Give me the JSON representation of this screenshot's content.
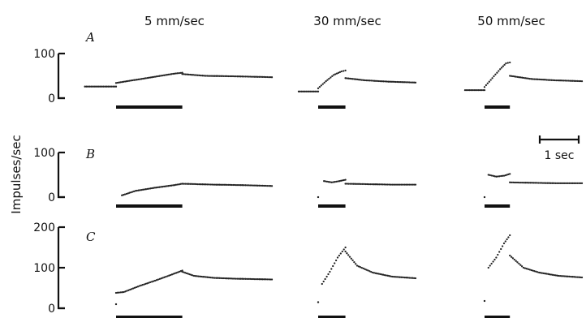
{
  "chart_data": {
    "type": "scatter",
    "ylabel": "Impulses/sec",
    "column_titles": [
      "5 mm/sec",
      "30 mm/sec",
      "50 mm/sec"
    ],
    "scale_bar": {
      "label": "1 sec",
      "value": 1,
      "units": "sec"
    },
    "panels": [
      {
        "label": "A",
        "yticks": [
          0,
          100
        ],
        "ylim": [
          0,
          100
        ],
        "traces": [
          {
            "column": "5 mm/sec",
            "stimulus_sec": [
              0,
              1.7
            ],
            "segments": [
              {
                "t": [
                  -0.8,
                  0
                ],
                "y": [
                  26,
                  26
                ]
              },
              {
                "t": [
                  0.0,
                  0.5,
                  1.0,
                  1.5,
                  1.7
                ],
                "y": [
                  34,
                  41,
                  48,
                  55,
                  57
                ]
              },
              {
                "t": [
                  1.7,
                  2.3,
                  3.0,
                  4.0
                ],
                "y": [
                  54,
                  50,
                  49,
                  47
                ]
              }
            ]
          },
          {
            "column": "30 mm/sec",
            "stimulus_sec": [
              0,
              0.7
            ],
            "segments": [
              {
                "t": [
                  -0.5,
                  0
                ],
                "y": [
                  15,
                  15
                ]
              },
              {
                "t": [
                  0.0,
                  0.2,
                  0.4,
                  0.6,
                  0.7
                ],
                "y": [
                  22,
                  38,
                  52,
                  60,
                  62
                ]
              },
              {
                "t": [
                  0.7,
                  1.2,
                  1.8,
                  2.5
                ],
                "y": [
                  45,
                  40,
                  37,
                  35
                ]
              }
            ]
          },
          {
            "column": "50 mm/sec",
            "stimulus_sec": [
              0,
              0.65
            ],
            "segments": [
              {
                "t": [
                  -0.5,
                  0
                ],
                "y": [
                  18,
                  18
                ]
              },
              {
                "t": [
                  0.0,
                  0.2,
                  0.4,
                  0.55,
                  0.65
                ],
                "y": [
                  25,
                  45,
                  65,
                  78,
                  80
                ]
              },
              {
                "t": [
                  0.65,
                  1.2,
                  1.8,
                  2.5
                ],
                "y": [
                  50,
                  43,
                  40,
                  38
                ]
              }
            ]
          }
        ]
      },
      {
        "label": "B",
        "yticks": [
          0,
          100
        ],
        "ylim": [
          0,
          100
        ],
        "traces": [
          {
            "column": "5 mm/sec",
            "stimulus_sec": [
              0,
              1.7
            ],
            "segments": [
              {
                "t": [
                  0.15,
                  0.5,
                  1.0,
                  1.5,
                  1.7
                ],
                "y": [
                  4,
                  14,
                  21,
                  27,
                  30
                ]
              },
              {
                "t": [
                  1.7,
                  2.5,
                  3.2,
                  4.0
                ],
                "y": [
                  30,
                  28,
                  27,
                  25
                ]
              }
            ]
          },
          {
            "column": "30 mm/sec",
            "stimulus_sec": [
              0,
              0.7
            ],
            "segments": [
              {
                "t": [
                  0.0,
                  0.0
                ],
                "y": [
                  0,
                  0
                ]
              },
              {
                "t": [
                  0.15,
                  0.35,
                  0.55,
                  0.7
                ],
                "y": [
                  36,
                  33,
                  36,
                  39
                ]
              },
              {
                "t": [
                  0.7,
                  1.3,
                  1.9,
                  2.5
                ],
                "y": [
                  30,
                  29,
                  28,
                  28
                ]
              }
            ]
          },
          {
            "column": "50 mm/sec",
            "stimulus_sec": [
              0,
              0.65
            ],
            "segments": [
              {
                "t": [
                  0.0,
                  0.0
                ],
                "y": [
                  0,
                  0
                ]
              },
              {
                "t": [
                  0.1,
                  0.3,
                  0.5,
                  0.65
                ],
                "y": [
                  50,
                  46,
                  48,
                  52
                ]
              },
              {
                "t": [
                  0.65,
                  1.3,
                  1.9,
                  2.5
                ],
                "y": [
                  33,
                  32,
                  31,
                  31
                ]
              }
            ]
          }
        ]
      },
      {
        "label": "C",
        "yticks": [
          0,
          100,
          200
        ],
        "ylim": [
          0,
          200
        ],
        "traces": [
          {
            "column": "5 mm/sec",
            "stimulus_sec": [
              0,
              1.7
            ],
            "segments": [
              {
                "t": [
                  0.0,
                  0.0
                ],
                "y": [
                  10,
                  10
                ]
              },
              {
                "t": [
                  0.0,
                  0.2,
                  0.6,
                  1.0,
                  1.4,
                  1.7
                ],
                "y": [
                  38,
                  40,
                  55,
                  68,
                  82,
                  93
                ]
              },
              {
                "t": [
                  1.7,
                  2.0,
                  2.5,
                  3.0,
                  4.0
                ],
                "y": [
                  90,
                  80,
                  75,
                  73,
                  71
                ]
              }
            ]
          },
          {
            "column": "30 mm/sec",
            "stimulus_sec": [
              0,
              0.7
            ],
            "segments": [
              {
                "t": [
                  0.0,
                  0.0
                ],
                "y": [
                  15,
                  15
                ]
              },
              {
                "t": [
                  0.1,
                  0.3,
                  0.5,
                  0.7
                ],
                "y": [
                  60,
                  90,
                  125,
                  150
                ]
              },
              {
                "t": [
                  0.7,
                  1.0,
                  1.4,
                  1.9,
                  2.5
                ],
                "y": [
                  140,
                  105,
                  88,
                  78,
                  74
                ]
              }
            ]
          },
          {
            "column": "50 mm/sec",
            "stimulus_sec": [
              0,
              0.65
            ],
            "segments": [
              {
                "t": [
                  0.0,
                  0.0
                ],
                "y": [
                  18,
                  18
                ]
              },
              {
                "t": [
                  0.1,
                  0.3,
                  0.5,
                  0.65
                ],
                "y": [
                  100,
                  125,
                  160,
                  180
                ]
              },
              {
                "t": [
                  0.65,
                  1.0,
                  1.4,
                  1.9,
                  2.5
                ],
                "y": [
                  130,
                  100,
                  88,
                  80,
                  76
                ]
              }
            ]
          }
        ]
      }
    ]
  }
}
